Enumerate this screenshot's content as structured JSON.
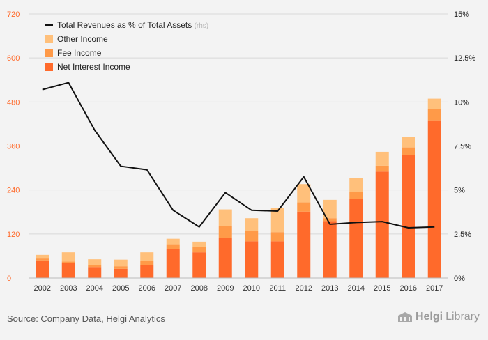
{
  "chart_data": {
    "type": "bar",
    "stacked": true,
    "categories": [
      "2002",
      "2003",
      "2004",
      "2005",
      "2006",
      "2007",
      "2008",
      "2009",
      "2010",
      "2011",
      "2012",
      "2013",
      "2014",
      "2015",
      "2016",
      "2017"
    ],
    "series": [
      {
        "name": "Net Interest Income",
        "color": "#ff6a2b",
        "values": [
          48,
          40,
          30,
          25,
          36,
          78,
          70,
          110,
          100,
          100,
          181,
          155,
          215,
          290,
          336,
          430
        ]
      },
      {
        "name": "Fee Income",
        "color": "#ff9a48",
        "values": [
          5,
          5,
          5,
          7,
          10,
          14,
          14,
          32,
          28,
          25,
          25,
          8,
          20,
          16,
          20,
          30
        ]
      },
      {
        "name": "Other Income",
        "color": "#ffc07b",
        "values": [
          10,
          25,
          16,
          18,
          24,
          15,
          15,
          45,
          35,
          65,
          50,
          50,
          37,
          38,
          29,
          29
        ]
      }
    ],
    "line": {
      "name": "Total Revenues as % of Total Assets",
      "suffix": "(rhs)",
      "color": "#111111",
      "values": [
        10.7,
        11.1,
        8.4,
        6.35,
        6.15,
        3.85,
        2.9,
        4.85,
        3.85,
        3.8,
        5.75,
        3.05,
        3.15,
        3.2,
        2.85,
        2.9
      ]
    },
    "ylim": [
      0,
      720
    ],
    "y_ticks": [
      "0",
      "120",
      "240",
      "360",
      "480",
      "600",
      "720"
    ],
    "y2lim": [
      0,
      15
    ],
    "y2_ticks": [
      "0%",
      "2.5%",
      "5%",
      "7.5%",
      "10%",
      "12.5%",
      "15%"
    ],
    "legend_position": "top-left",
    "grid": true
  },
  "colors": {
    "left_axis": "#ff6a2b",
    "background": "#f3f3f3",
    "grid": "#d8d8d8"
  },
  "footer": {
    "source": "Source: Company Data, Helgi Analytics",
    "brand_helgi": "Helgi",
    "brand_library": "Library",
    "brand_icon": "library-building-icon"
  }
}
